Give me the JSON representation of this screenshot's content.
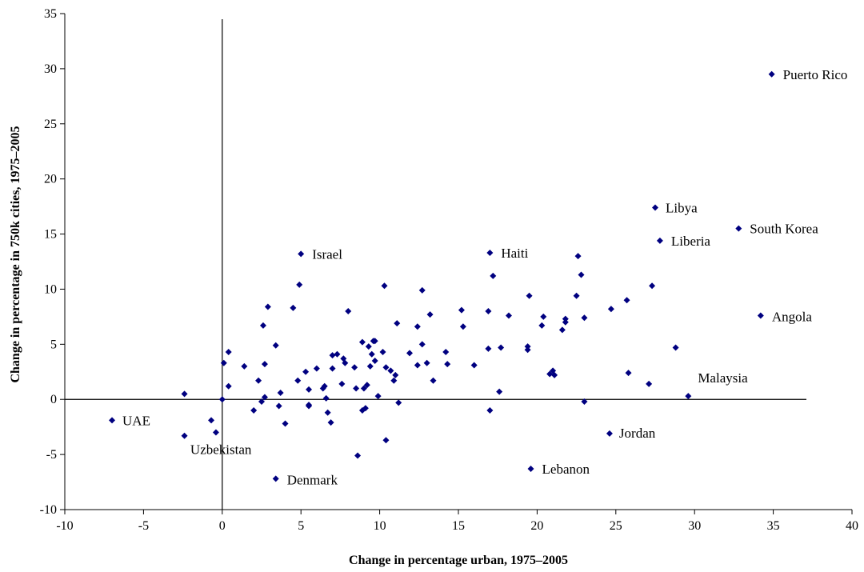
{
  "chart_data": {
    "type": "scatter",
    "title": "",
    "xlabel": "Change in percentage urban, 1975–2005",
    "ylabel": "Change in percentage in 750k cities, 1975–2005",
    "xlim": [
      -10,
      40
    ],
    "ylim": [
      -10,
      35
    ],
    "xticks": [
      -10,
      -5,
      0,
      5,
      10,
      15,
      20,
      25,
      30,
      35,
      40
    ],
    "yticks": [
      -10,
      -5,
      0,
      5,
      10,
      15,
      20,
      25,
      30,
      35
    ],
    "grid": false,
    "legend": "none",
    "marker_color": "#000080",
    "zero_lines": true,
    "series": [
      {
        "points": [
          [
            -7,
            -1.9
          ],
          [
            -2.4,
            0.5
          ],
          [
            -2.4,
            -3.3
          ],
          [
            -0.7,
            -1.9
          ],
          [
            -0.4,
            -3.0
          ],
          [
            0,
            0
          ],
          [
            0.1,
            3.3
          ],
          [
            0.4,
            4.3
          ],
          [
            0.4,
            1.2
          ],
          [
            1.4,
            3.0
          ],
          [
            2.0,
            -1.0
          ],
          [
            2.3,
            1.7
          ],
          [
            2.5,
            -0.2
          ],
          [
            2.6,
            6.7
          ],
          [
            2.7,
            3.2
          ],
          [
            2.7,
            0.2
          ],
          [
            2.9,
            8.4
          ],
          [
            3.4,
            4.9
          ],
          [
            3.4,
            -7.2
          ],
          [
            3.6,
            -0.6
          ],
          [
            3.7,
            0.6
          ],
          [
            4.0,
            -2.2
          ],
          [
            4.5,
            8.3
          ],
          [
            4.8,
            1.7
          ],
          [
            4.9,
            10.4
          ],
          [
            5.0,
            13.2
          ],
          [
            5.3,
            2.5
          ],
          [
            5.5,
            0.9
          ],
          [
            5.5,
            -0.6
          ],
          [
            5.5,
            -0.5
          ],
          [
            6.0,
            2.8
          ],
          [
            6.4,
            1.0
          ],
          [
            6.5,
            1.2
          ],
          [
            6.6,
            0.1
          ],
          [
            6.7,
            -1.2
          ],
          [
            6.9,
            -2.1
          ],
          [
            7.0,
            4.0
          ],
          [
            7.0,
            2.8
          ],
          [
            7.3,
            4.1
          ],
          [
            7.6,
            1.4
          ],
          [
            7.7,
            3.7
          ],
          [
            7.8,
            3.3
          ],
          [
            8.0,
            8.0
          ],
          [
            8.4,
            2.9
          ],
          [
            8.5,
            1.0
          ],
          [
            8.6,
            -5.1
          ],
          [
            8.9,
            5.2
          ],
          [
            8.9,
            -1.0
          ],
          [
            9.0,
            1.0
          ],
          [
            9.1,
            -0.8
          ],
          [
            9.2,
            1.3
          ],
          [
            9.3,
            4.8
          ],
          [
            9.4,
            3.0
          ],
          [
            9.5,
            4.1
          ],
          [
            9.6,
            5.3
          ],
          [
            9.7,
            5.3
          ],
          [
            9.7,
            3.5
          ],
          [
            9.9,
            0.3
          ],
          [
            10.2,
            4.3
          ],
          [
            10.3,
            10.3
          ],
          [
            10.4,
            2.9
          ],
          [
            10.4,
            -3.7
          ],
          [
            10.7,
            2.6
          ],
          [
            10.9,
            1.7
          ],
          [
            11.0,
            2.2
          ],
          [
            11.1,
            6.9
          ],
          [
            11.2,
            -0.3
          ],
          [
            11.9,
            4.2
          ],
          [
            12.4,
            3.1
          ],
          [
            12.4,
            6.6
          ],
          [
            12.7,
            9.9
          ],
          [
            12.7,
            5.0
          ],
          [
            13.0,
            3.3
          ],
          [
            13.2,
            7.7
          ],
          [
            13.4,
            1.7
          ],
          [
            14.2,
            4.3
          ],
          [
            14.3,
            3.2
          ],
          [
            15.2,
            8.1
          ],
          [
            15.3,
            6.6
          ],
          [
            16.0,
            3.1
          ],
          [
            16.9,
            4.6
          ],
          [
            16.9,
            8.0
          ],
          [
            17.0,
            13.3
          ],
          [
            17.0,
            -1.0
          ],
          [
            17.2,
            11.2
          ],
          [
            17.6,
            0.7
          ],
          [
            17.7,
            4.7
          ],
          [
            18.2,
            7.6
          ],
          [
            19.4,
            4.5
          ],
          [
            19.4,
            4.8
          ],
          [
            19.5,
            9.4
          ],
          [
            19.6,
            -6.3
          ],
          [
            20.3,
            6.7
          ],
          [
            20.4,
            7.5
          ],
          [
            20.8,
            2.3
          ],
          [
            21.0,
            2.6
          ],
          [
            21.1,
            2.2
          ],
          [
            21.6,
            6.3
          ],
          [
            21.8,
            7.3
          ],
          [
            21.8,
            7.0
          ],
          [
            22.5,
            9.4
          ],
          [
            22.6,
            13.0
          ],
          [
            22.8,
            11.3
          ],
          [
            23.0,
            7.4
          ],
          [
            23.0,
            -0.2
          ],
          [
            24.6,
            -3.1
          ],
          [
            24.7,
            8.2
          ],
          [
            25.7,
            9.0
          ],
          [
            25.8,
            2.4
          ],
          [
            27.1,
            1.4
          ],
          [
            27.3,
            10.3
          ],
          [
            27.5,
            17.4
          ],
          [
            27.8,
            14.4
          ],
          [
            28.8,
            4.7
          ],
          [
            29.6,
            0.3
          ],
          [
            32.8,
            15.5
          ],
          [
            34.2,
            7.6
          ],
          [
            34.9,
            29.5
          ]
        ]
      }
    ],
    "annotations": [
      {
        "label": "Puerto Rico",
        "x": 34.9,
        "y": 29.5
      },
      {
        "label": "Libya",
        "x": 27.5,
        "y": 17.4
      },
      {
        "label": "South Korea",
        "x": 32.8,
        "y": 15.5
      },
      {
        "label": "Liberia",
        "x": 27.8,
        "y": 14.4
      },
      {
        "label": "Israel",
        "x": 5.0,
        "y": 13.2
      },
      {
        "label": "Haiti",
        "x": 17.0,
        "y": 13.3
      },
      {
        "label": "Angola",
        "x": 34.2,
        "y": 7.6
      },
      {
        "label": "Malaysia",
        "x": 29.6,
        "y": 0.3
      },
      {
        "label": "UAE",
        "x": -7.0,
        "y": -1.9
      },
      {
        "label": "Uzbekistan",
        "x": -0.4,
        "y": -3.0
      },
      {
        "label": "Jordan",
        "x": 24.6,
        "y": -3.1
      },
      {
        "label": "Lebanon",
        "x": 19.6,
        "y": -6.3
      },
      {
        "label": "Denmark",
        "x": 3.4,
        "y": -7.2
      }
    ]
  }
}
